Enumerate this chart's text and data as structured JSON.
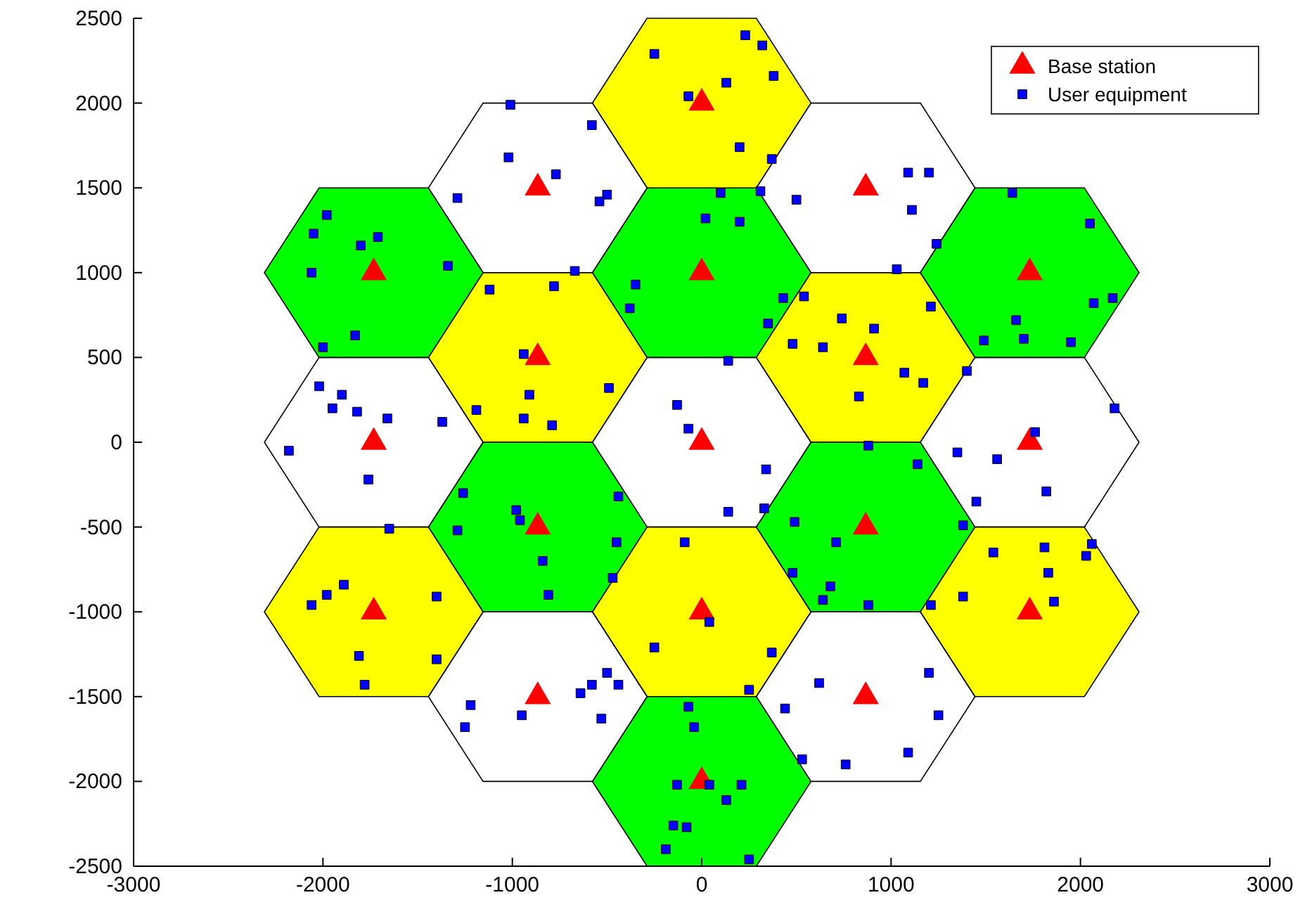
{
  "chart_data": {
    "type": "scatter",
    "xlim": [
      -3000,
      3000
    ],
    "ylim": [
      -2500,
      2500
    ],
    "xticks": [
      -3000,
      -2000,
      -1000,
      0,
      1000,
      2000,
      3000
    ],
    "yticks": [
      -2500,
      -2000,
      -1500,
      -1000,
      -500,
      0,
      500,
      1000,
      1500,
      2000,
      2500
    ],
    "grid": false,
    "legend": "top right",
    "series": [
      {
        "name": "Base station",
        "color": "#ff0000",
        "marker": "triangle",
        "x": [
          0,
          0,
          0,
          0,
          0,
          866,
          866,
          866,
          866,
          -866,
          -866,
          -866,
          -866,
          1732,
          1732,
          1732,
          -1732,
          -1732,
          -1732
        ],
        "values": [
          0,
          1000,
          2000,
          -1000,
          -2000,
          500,
          1500,
          -500,
          -1500,
          500,
          1500,
          -500,
          -1500,
          0,
          1000,
          -1000,
          0,
          1000,
          -1000
        ]
      },
      {
        "name": "User equipment",
        "color": "#0000ff",
        "marker": "square",
        "x": [
          -250,
          230,
          320,
          -70,
          130,
          380,
          200,
          370,
          -1010,
          -1020,
          -770,
          -1290,
          -580,
          -500,
          -540,
          -670,
          1090,
          1200,
          1110,
          1240,
          1030,
          500,
          310,
          100,
          20,
          200,
          -350,
          -380,
          350,
          430,
          1640,
          2050,
          2070,
          2170,
          1950,
          1700,
          1660,
          1490,
          1400,
          1210,
          -2050,
          -1980,
          -1710,
          -1800,
          -2060,
          -1340,
          -1830,
          -2000,
          -1120,
          -780,
          -940,
          -910,
          -940,
          -790,
          -1190,
          -490,
          540,
          740,
          480,
          640,
          910,
          1070,
          1170,
          830,
          140,
          340,
          -2020,
          -1900,
          -1950,
          -1820,
          -1660,
          -1370,
          -2180,
          -1760,
          -130,
          -70,
          140,
          1350,
          1560,
          1760,
          2180,
          1450,
          1380,
          1820,
          -1260,
          -980,
          -960,
          -440,
          -1290,
          -840,
          -810,
          -470,
          -450,
          880,
          1140,
          490,
          710,
          480,
          680,
          640,
          880,
          330,
          1540,
          1810,
          1830,
          1860,
          1380,
          1210,
          2060,
          2030,
          -1890,
          -1980,
          -2060,
          -1400,
          -1810,
          -1780,
          -1400,
          -1650,
          -90,
          40,
          -250,
          370,
          250,
          -1220,
          -1250,
          -950,
          -640,
          -580,
          -500,
          -440,
          -530,
          440,
          530,
          620,
          760,
          1090,
          1250,
          1200,
          -70,
          -40,
          -130,
          40,
          210,
          130,
          -150,
          -190,
          -80,
          250
        ],
        "values": [
          2290,
          2400,
          2340,
          2040,
          2120,
          2160,
          1740,
          1670,
          1990,
          1680,
          1580,
          1440,
          1870,
          1460,
          1420,
          1010,
          1590,
          1590,
          1370,
          1170,
          1020,
          1430,
          1480,
          1470,
          1320,
          1300,
          930,
          790,
          700,
          850,
          1470,
          1290,
          820,
          850,
          590,
          610,
          720,
          600,
          420,
          800,
          1230,
          1340,
          1210,
          1160,
          1000,
          1040,
          630,
          560,
          900,
          920,
          520,
          280,
          140,
          100,
          190,
          320,
          860,
          730,
          580,
          560,
          670,
          410,
          350,
          270,
          480,
          -160,
          330,
          280,
          200,
          180,
          140,
          120,
          -50,
          -220,
          220,
          80,
          -410,
          -60,
          -100,
          60,
          200,
          -350,
          -490,
          -290,
          -300,
          -400,
          -460,
          -320,
          -520,
          -700,
          -900,
          -800,
          -590,
          -20,
          -130,
          -470,
          -590,
          -770,
          -850,
          -930,
          -960,
          -390,
          -650,
          -620,
          -770,
          -940,
          -910,
          -960,
          -600,
          -670,
          -840,
          -900,
          -960,
          -910,
          -1260,
          -1430,
          -1280,
          -510,
          -590,
          -1060,
          -1210,
          -1240,
          -1460,
          -1550,
          -1680,
          -1610,
          -1480,
          -1430,
          -1360,
          -1430,
          -1630,
          -1570,
          -1870,
          -1420,
          -1900,
          -1830,
          -1610,
          -1360,
          -1560,
          -1680,
          -2020,
          -2020,
          -2020,
          -2110,
          -2260,
          -2400,
          -2270,
          -2460
        ]
      }
    ]
  }
}
